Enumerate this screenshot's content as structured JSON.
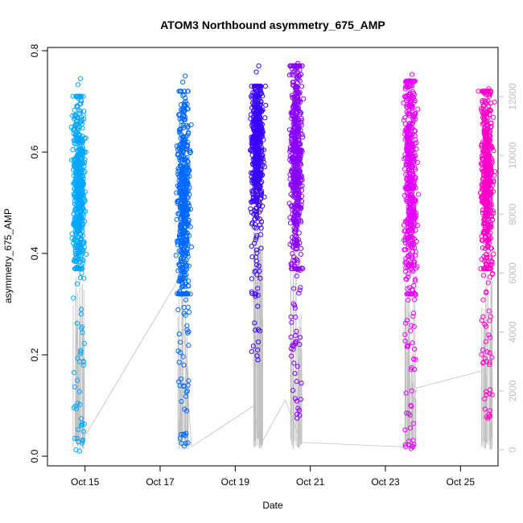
{
  "chart_data": {
    "type": "scatter",
    "title": "ATOM3 Northbound asymmetry_675_AMP",
    "xlabel": "Date",
    "ylabel": "asymmetry_675_AMP",
    "x_tick_labels": [
      "Oct 15",
      "Oct 17",
      "Oct 19",
      "Oct 21",
      "Oct 23",
      "Oct 25"
    ],
    "x_tick_values": [
      "2014-10-15",
      "2014-10-17",
      "2014-10-19",
      "2014-10-21",
      "2014-10-23",
      "2014-10-25"
    ],
    "xlim": [
      "2014-10-14",
      "2014-10-26"
    ],
    "y_ticks": [
      0.0,
      0.2,
      0.4,
      0.6,
      0.8
    ],
    "y_tick_labels": [
      "0.0",
      "0.2",
      "0.4",
      "0.6",
      "0.8"
    ],
    "ylim": [
      0.0,
      0.8
    ],
    "y2_ticks": [
      0,
      2000,
      4000,
      6000,
      8000,
      10000,
      12000
    ],
    "y2_tick_labels": [
      "0",
      "2000",
      "4000",
      "6000",
      "8000",
      "10000",
      "12000"
    ],
    "y2lim": [
      0,
      12000
    ],
    "y2_color": "#bebebe",
    "grid": false,
    "legend": "none",
    "clusters": [
      {
        "x": "2014-10-14 20:00",
        "color": "#00a6ff",
        "y_min": 0.01,
        "y_max": 0.745,
        "core_low": 0.4,
        "core_high": 0.69,
        "center": 0.53
      },
      {
        "x": "2014-10-17 15:00",
        "color": "#0068ff",
        "y_min": 0.02,
        "y_max": 0.75,
        "core_low": 0.35,
        "core_high": 0.7,
        "center": 0.5
      },
      {
        "x": "2014-10-19 14:00",
        "color": "#3a00ff",
        "y_min": 0.19,
        "y_max": 0.77,
        "core_low": 0.48,
        "core_high": 0.71,
        "center": 0.62
      },
      {
        "x": "2014-10-20 15:00",
        "color": "#8a00ff",
        "y_min": 0.075,
        "y_max": 0.775,
        "core_low": 0.4,
        "core_high": 0.75,
        "center": 0.6
      },
      {
        "x": "2014-10-23 16:00",
        "color": "#e600ff",
        "y_min": 0.015,
        "y_max": 0.753,
        "core_low": 0.35,
        "core_high": 0.72,
        "center": 0.55
      },
      {
        "x": "2014-10-25 17:00",
        "color": "#ff00c8",
        "y_min": 0.075,
        "y_max": 0.725,
        "core_low": 0.4,
        "core_high": 0.7,
        "center": 0.55
      }
    ],
    "index_series": {
      "name": "",
      "color": "#bebebe",
      "points": [
        {
          "x": "2014-10-14 21:00",
          "y2": 200
        },
        {
          "x": "2014-10-17 13:00",
          "y2": 5900
        },
        {
          "x": "2014-10-17 20:00",
          "y2": 100
        },
        {
          "x": "2014-10-19 12:00",
          "y2": 1500
        },
        {
          "x": "2014-10-19 16:00",
          "y2": 150
        },
        {
          "x": "2014-10-20 08:00",
          "y2": 1700
        },
        {
          "x": "2014-10-20 18:00",
          "y2": 250
        },
        {
          "x": "2014-10-23 12:00",
          "y2": 100
        },
        {
          "x": "2014-10-23 20:00",
          "y2": 2100
        },
        {
          "x": "2014-10-25 15:00",
          "y2": 2700
        }
      ]
    }
  }
}
